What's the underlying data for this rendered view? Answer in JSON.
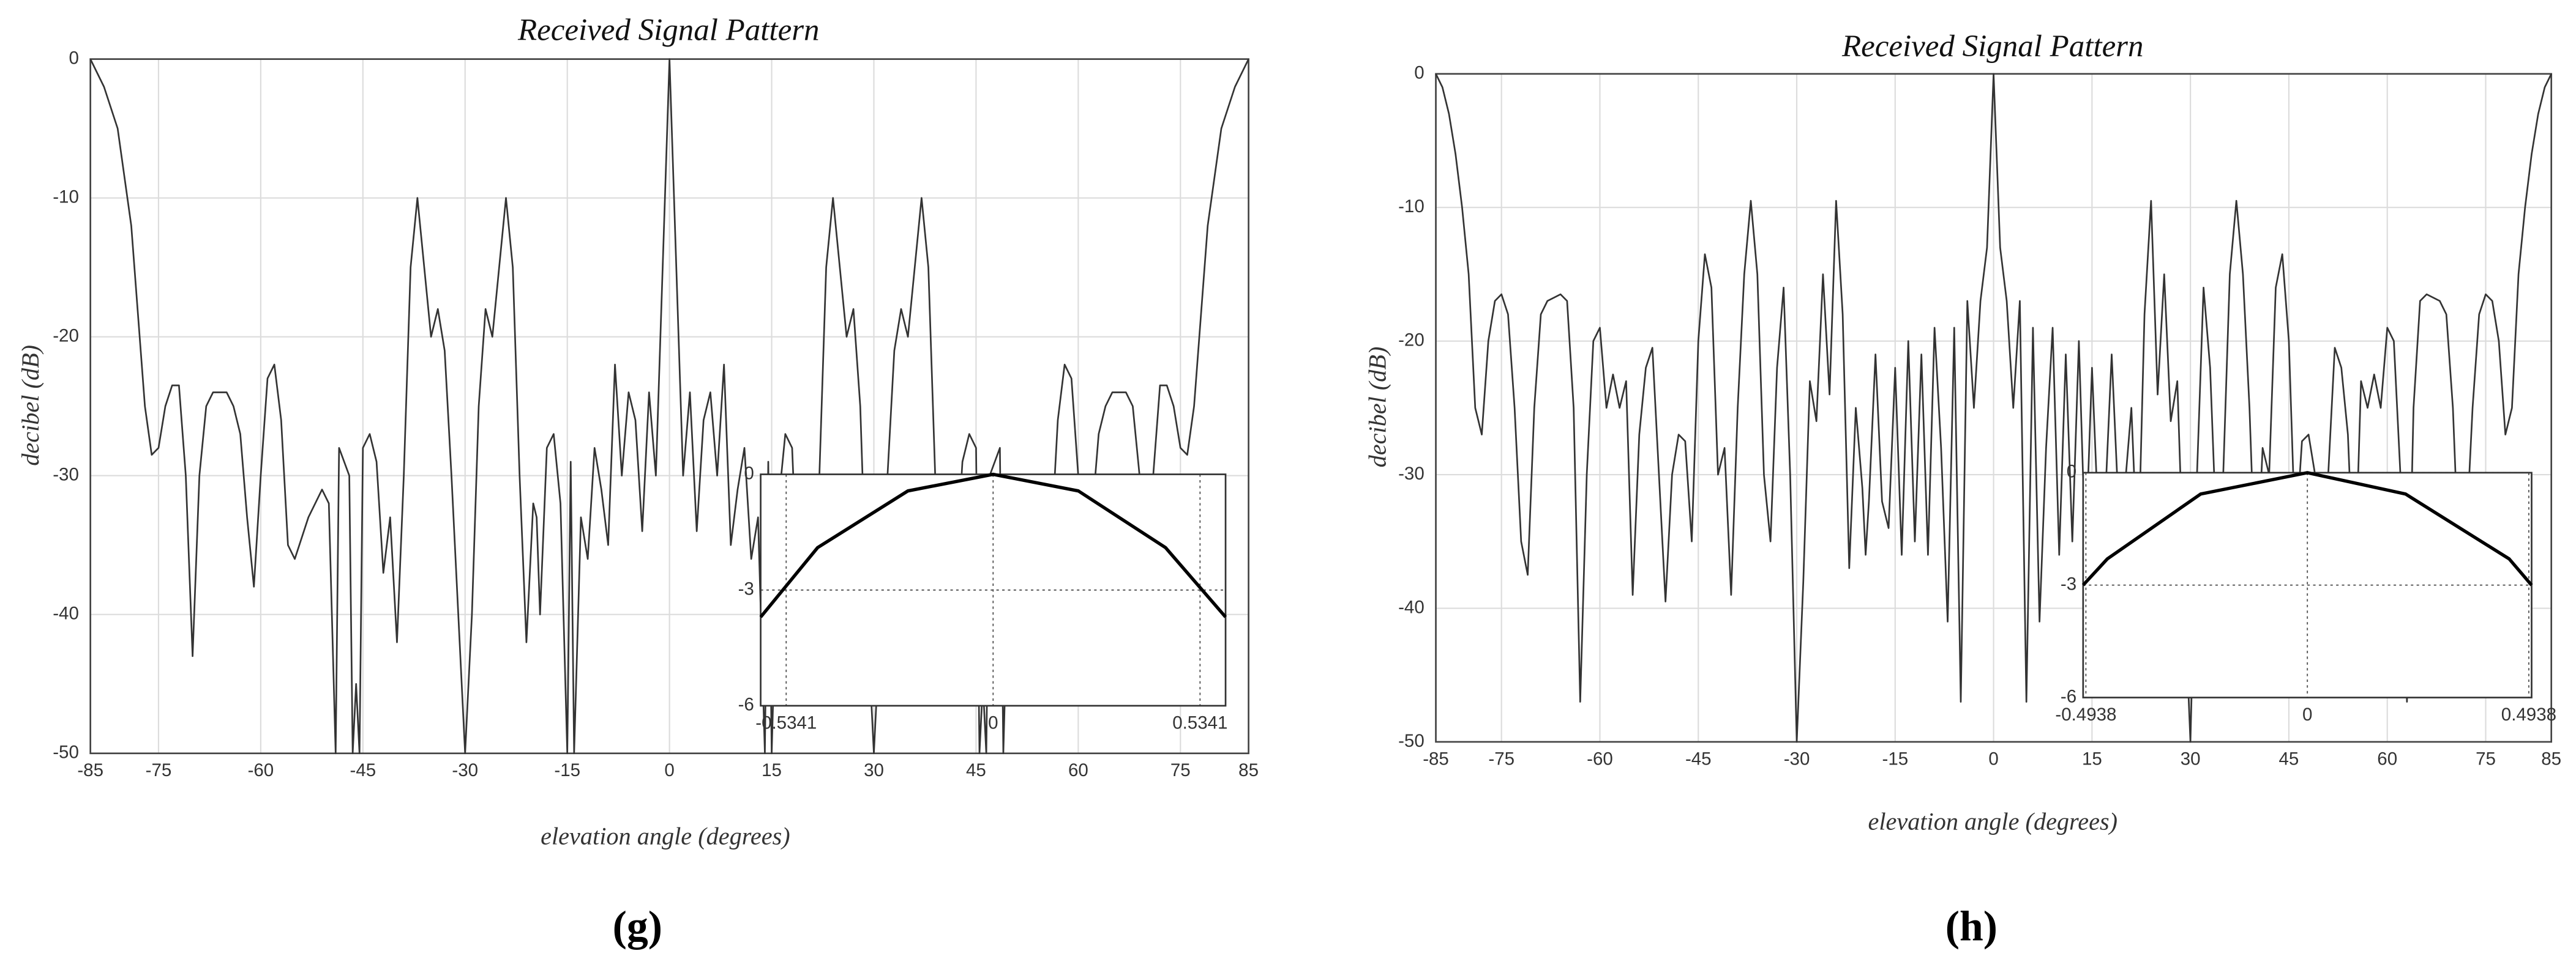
{
  "chart_data": [
    {
      "type": "line",
      "title": "Received Signal Pattern",
      "xlabel": "elevation angle (degrees)",
      "ylabel": "decibel (dB)",
      "panel_label": "(g)",
      "color": "#333333",
      "x": [
        -85,
        -83,
        -81,
        -79,
        -77,
        -76,
        -75,
        -74,
        -73,
        -72,
        -71,
        -70,
        -69,
        -68,
        -67,
        -65,
        -64,
        -63,
        -62,
        -61,
        -60,
        -59,
        -58,
        -57,
        -56,
        -55,
        -53,
        -51,
        -50,
        -49,
        -48.5,
        -47,
        -46.5,
        -46,
        -45.5,
        -45,
        -44,
        -43,
        -42,
        -41,
        -40,
        -39,
        -38,
        -37,
        -36,
        -35,
        -34,
        -33,
        -32,
        -31,
        -30,
        -29,
        -28,
        -27,
        -26,
        -25,
        -24,
        -23,
        -22,
        -21,
        -20,
        -19.5,
        -19,
        -18,
        -17,
        -16,
        -15,
        -14.5,
        -14,
        -13,
        -12,
        -11,
        -10,
        -9,
        -8,
        -7,
        -6,
        -5,
        -4,
        -3,
        -2,
        -1,
        0,
        1,
        2,
        3,
        4,
        5,
        6,
        7,
        8,
        9,
        10,
        11,
        12,
        13,
        14,
        14.5,
        15,
        16,
        17,
        18,
        19,
        19.5,
        20,
        21,
        22,
        23,
        24,
        25,
        26,
        27,
        28,
        29,
        30,
        31,
        32,
        33,
        34,
        35,
        36,
        37,
        38,
        39,
        40,
        41,
        42,
        43,
        44,
        45,
        45.5,
        46,
        46.5,
        47,
        48.5,
        49,
        50,
        51,
        53,
        55,
        56,
        57,
        58,
        59,
        60,
        61,
        62,
        63,
        64,
        65,
        67,
        68,
        69,
        70,
        71,
        72,
        73,
        74,
        75,
        76,
        77,
        79,
        81,
        83,
        85
      ],
      "values": [
        0,
        -2,
        -5,
        -12,
        -25,
        -28.5,
        -28,
        -25,
        -23.5,
        -23.5,
        -30,
        -43,
        -30,
        -25,
        -24,
        -24,
        -25,
        -27,
        -33,
        -38,
        -30,
        -23,
        -22,
        -26,
        -35,
        -36,
        -33,
        -31,
        -32,
        -50,
        -28,
        -30,
        -50,
        -45,
        -50,
        -28,
        -27,
        -29,
        -37,
        -33,
        -42,
        -30,
        -15,
        -10,
        -15,
        -20,
        -18,
        -21,
        -30,
        -40,
        -50,
        -40,
        -25,
        -18,
        -20,
        -15,
        -10,
        -15,
        -30,
        -42,
        -32,
        -33,
        -40,
        -28,
        -27,
        -32,
        -50,
        -29,
        -50,
        -33,
        -36,
        -28,
        -31,
        -35,
        -22,
        -30,
        -24,
        -26,
        -34,
        -24,
        -30,
        -15,
        0,
        -15,
        -30,
        -24,
        -34,
        -26,
        -24,
        -30,
        -22,
        -35,
        -31,
        -28,
        -36,
        -33,
        -50,
        -29,
        -50,
        -32,
        -27,
        -28,
        -40,
        -33,
        -32,
        -42,
        -30,
        -15,
        -10,
        -15,
        -20,
        -18,
        -25,
        -40,
        -50,
        -40,
        -30,
        -21,
        -18,
        -20,
        -15,
        -10,
        -15,
        -30,
        -42,
        -33,
        -37,
        -29,
        -27,
        -28,
        -50,
        -45,
        -50,
        -30,
        -28,
        -50,
        -32,
        -31,
        -33,
        -36,
        -35,
        -26,
        -22,
        -23,
        -30,
        -38,
        -33,
        -27,
        -25,
        -24,
        -24,
        -25,
        -30,
        -43,
        -30,
        -23.5,
        -23.5,
        -25,
        -28,
        -28.5,
        -25,
        -12,
        -5,
        -2,
        0
      ],
      "xlim": [
        -85,
        85
      ],
      "ylim": [
        -50,
        0
      ],
      "xticks": [
        -85,
        -75,
        -60,
        -45,
        -30,
        -15,
        0,
        15,
        30,
        45,
        60,
        75,
        85
      ],
      "yticks": [
        0,
        -10,
        -20,
        -30,
        -40,
        -50
      ],
      "grid": true,
      "inset": {
        "type": "line",
        "color": "#000000",
        "x": [
          -0.6,
          -0.453,
          -0.22,
          0,
          0.22,
          0.445,
          0.6
        ],
        "values": [
          -3.7,
          -1.9,
          -0.43,
          0,
          -0.43,
          -1.9,
          -3.7
        ],
        "xlim": [
          -0.6,
          0.6
        ],
        "ylim": [
          -6,
          0
        ],
        "xticks": [
          -0.5341,
          0,
          0.5341
        ],
        "yticks": [
          0,
          -3,
          -6
        ],
        "grid": true
      }
    },
    {
      "type": "line",
      "title": "Received Signal Pattern",
      "xlabel": "elevation angle (degrees)",
      "ylabel": "decibel (dB)",
      "panel_label": "(h)",
      "color": "#333333",
      "x": [
        -85,
        -84,
        -83,
        -82,
        -81,
        -80,
        -79,
        -78,
        -77,
        -76,
        -75,
        -74,
        -73,
        -72,
        -71,
        -70,
        -69,
        -68,
        -66,
        -65,
        -64,
        -63,
        -62,
        -61,
        -60,
        -59,
        -58,
        -57,
        -56,
        -55,
        -54,
        -53,
        -52,
        -51,
        -50,
        -49,
        -48,
        -47,
        -46,
        -45,
        -44,
        -43,
        -42,
        -41,
        -40,
        -39,
        -38,
        -37,
        -36,
        -35,
        -34,
        -33,
        -32,
        -31,
        -30,
        -29,
        -28,
        -27,
        -26,
        -25,
        -24,
        -23,
        -22,
        -21,
        -20,
        -19.5,
        -19,
        -18,
        -17,
        -16,
        -15,
        -14,
        -13,
        -12,
        -11,
        -10,
        -9,
        -8,
        -7,
        -6,
        -5,
        -4,
        -3,
        -2,
        -1,
        0,
        1,
        2,
        3,
        4,
        5,
        6,
        7,
        8,
        9,
        10,
        11,
        12,
        13,
        14,
        15,
        16,
        17,
        18,
        19,
        19.5,
        20,
        21,
        22,
        23,
        24,
        25,
        26,
        27,
        28,
        29,
        30,
        31,
        32,
        33,
        34,
        35,
        36,
        37,
        38,
        39,
        40,
        41,
        42,
        43,
        44,
        45,
        46,
        47,
        48,
        49,
        50,
        51,
        52,
        53,
        54,
        55,
        56,
        57,
        58,
        59,
        60,
        61,
        62,
        63,
        64,
        65,
        66,
        68,
        69,
        70,
        71,
        72,
        73,
        74,
        75,
        76,
        77,
        78,
        79,
        80,
        81,
        82,
        83,
        84,
        85
      ],
      "values": [
        0,
        -1,
        -3,
        -6,
        -10,
        -15,
        -25,
        -27,
        -20,
        -17,
        -16.5,
        -18,
        -25,
        -35,
        -37.5,
        -25,
        -18,
        -17,
        -16.5,
        -17,
        -25,
        -47,
        -30,
        -20,
        -19,
        -25,
        -22.5,
        -25,
        -23,
        -39,
        -27,
        -22,
        -20.5,
        -30,
        -39.5,
        -30,
        -27,
        -27.5,
        -35,
        -20,
        -13.5,
        -16,
        -30,
        -28,
        -39,
        -25,
        -15,
        -9.5,
        -15,
        -30,
        -35,
        -22,
        -16,
        -30,
        -50,
        -38,
        -23,
        -26,
        -15,
        -24,
        -9.5,
        -18,
        -37,
        -25,
        -31,
        -36,
        -32,
        -21,
        -32,
        -34,
        -22,
        -36,
        -20,
        -35,
        -21,
        -36,
        -19,
        -28,
        -41,
        -19,
        -47,
        -17,
        -25,
        -17,
        -13,
        0,
        -13,
        -17,
        -25,
        -17,
        -47,
        -19,
        -41,
        -28,
        -19,
        -36,
        -21,
        -35,
        -20,
        -36,
        -22,
        -34,
        -32,
        -21,
        -32,
        -36,
        -31,
        -25,
        -37,
        -18,
        -9.5,
        -24,
        -15,
        -26,
        -23,
        -38,
        -50,
        -30,
        -16,
        -22,
        -35,
        -30,
        -15,
        -9.5,
        -15,
        -25,
        -39,
        -28,
        -30,
        -16,
        -13.5,
        -20,
        -35,
        -27.5,
        -27,
        -30,
        -39.5,
        -30,
        -20.5,
        -22,
        -27,
        -39,
        -23,
        -25,
        -22.5,
        -25,
        -19,
        -20,
        -30,
        -47,
        -25,
        -17,
        -16.5,
        -17,
        -18,
        -25,
        -37.5,
        -35,
        -25,
        -18,
        -16.5,
        -17,
        -20,
        -27,
        -25,
        -15,
        -10,
        -6,
        -3,
        -1,
        0
      ],
      "xlim": [
        -85,
        85
      ],
      "ylim": [
        -50,
        0
      ],
      "xticks": [
        -85,
        -75,
        -60,
        -45,
        -30,
        -15,
        0,
        15,
        30,
        45,
        60,
        75,
        85
      ],
      "yticks": [
        0,
        -10,
        -20,
        -30,
        -40,
        -50
      ],
      "grid": true,
      "inset": {
        "type": "line",
        "color": "#000000",
        "x": [
          -0.5,
          -0.446,
          -0.238,
          0,
          0.219,
          0.45,
          0.5
        ],
        "values": [
          -3,
          -2.3,
          -0.57,
          0,
          -0.57,
          -2.3,
          -3
        ],
        "xlim": [
          -0.5,
          0.5
        ],
        "ylim": [
          -6,
          0
        ],
        "xticks": [
          -0.4938,
          0,
          0.4938
        ],
        "yticks": [
          0,
          -3,
          -6
        ],
        "grid": true
      }
    }
  ]
}
